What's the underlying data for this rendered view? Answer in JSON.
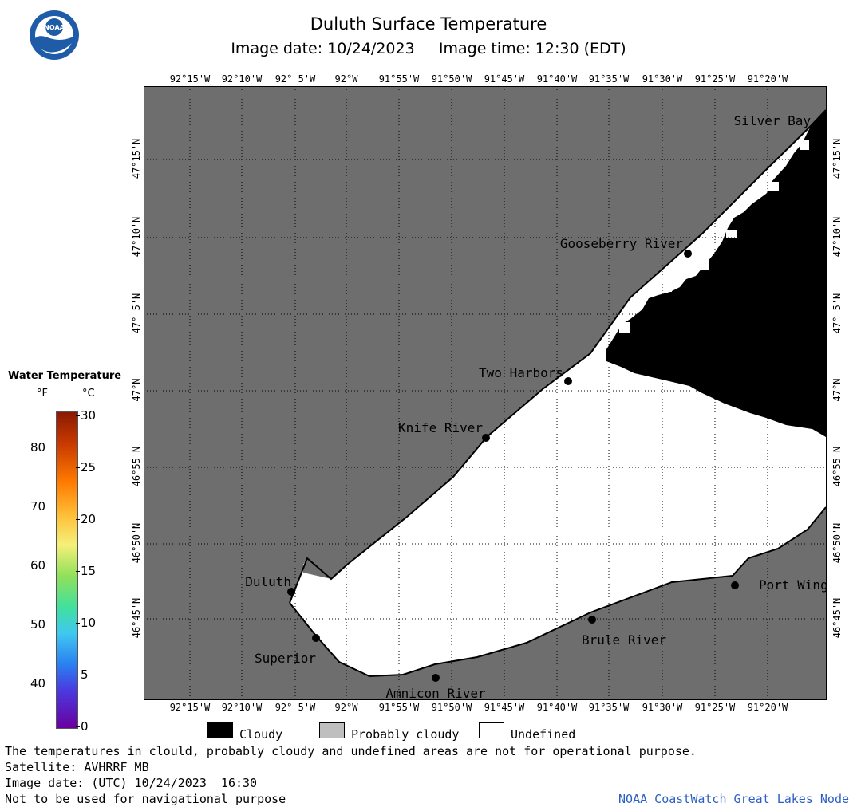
{
  "header": {
    "title": "Duluth Surface Temperature",
    "date_label": "Image date: 10/24/2023",
    "time_label": "Image time: 12:30 (EDT)"
  },
  "logo": {
    "text": "NOAA"
  },
  "map": {
    "longitude_labels": [
      "92°15'W",
      "92°10'W",
      "92° 5'W",
      "92°W",
      "91°55'W",
      "91°50'W",
      "91°45'W",
      "91°40'W",
      "91°35'W",
      "91°30'W",
      "91°25'W",
      "91°20'W"
    ],
    "latitude_labels": [
      "47°15'N",
      "47°10'N",
      "47° 5'N",
      "47°N",
      "46°55'N",
      "46°50'N",
      "46°45'N"
    ],
    "places": [
      "Silver Bay",
      "Gooseberry River",
      "Two Harbors",
      "Knife River",
      "Duluth",
      "Superior",
      "Amnicon River",
      "Brule River",
      "Port Wing"
    ],
    "colors": {
      "land": "#6e6e6e",
      "undefined": "#ffffff",
      "cloudy": "#000000",
      "grid": "#000000"
    }
  },
  "colorbar": {
    "title": "Water Temperature",
    "unit_f": "°F",
    "unit_c": "°C",
    "f_ticks": [
      "80",
      "70",
      "60",
      "50",
      "40"
    ],
    "c_ticks": [
      "30",
      "25",
      "20",
      "15",
      "10",
      "5",
      "0"
    ],
    "range_c": [
      0,
      30
    ]
  },
  "legend": {
    "items": [
      {
        "label": "Cloudy",
        "color": "#000000"
      },
      {
        "label": "Probably cloudy",
        "color": "#bfbfbf"
      },
      {
        "label": "Undefined",
        "color": "#ffffff"
      }
    ]
  },
  "footer": {
    "line1": "The temperatures in clould, probably cloudy and undefined areas are not for operational purpose.",
    "line2": "Satellite: AVHRRF_MB",
    "line3": "Image date: (UTC) 10/24/2023  16:30",
    "line4": "Not to be used for navigational purpose",
    "credit": "NOAA CoastWatch Great Lakes Node"
  }
}
